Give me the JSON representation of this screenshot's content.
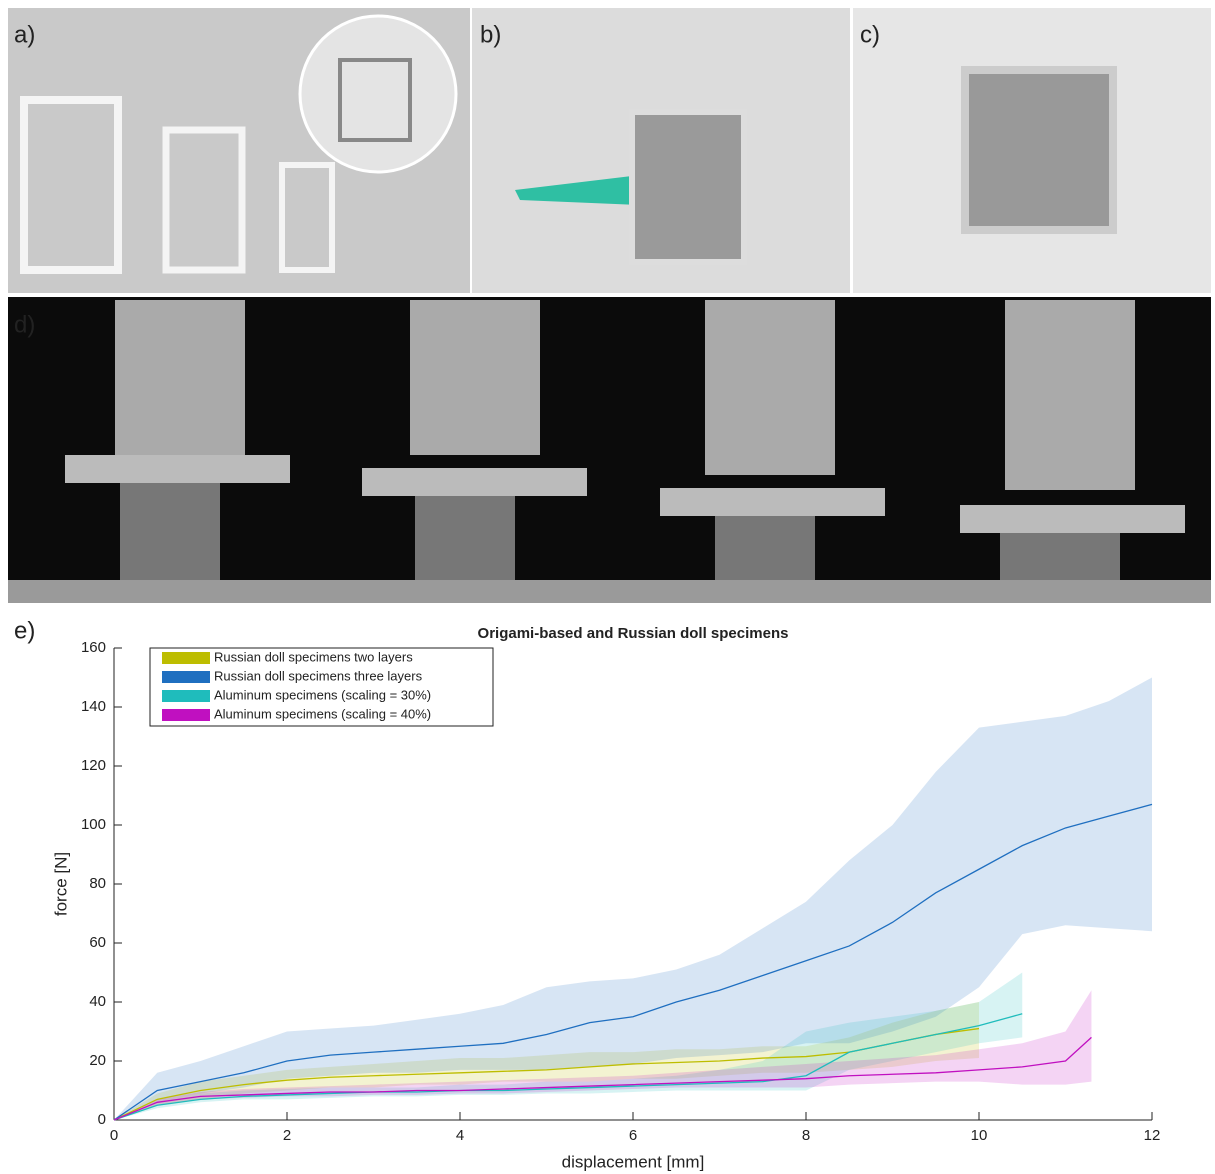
{
  "panels": [
    "a)",
    "b)",
    "c)",
    "d)",
    "e)"
  ],
  "chart_data": {
    "type": "line-band",
    "title": "Origami-based and Russian doll specimens",
    "xlabel": "displacement [mm]",
    "ylabel": "force [N]",
    "xlim": [
      0,
      12
    ],
    "ylim": [
      0,
      160
    ],
    "xticks": [
      0,
      2,
      4,
      6,
      8,
      10,
      12
    ],
    "yticks": [
      0,
      20,
      40,
      60,
      80,
      100,
      120,
      140,
      160
    ],
    "legend": "upper-left",
    "series": [
      {
        "name": "Russian doll specimens two layers",
        "color": "#bdbd00",
        "x": [
          0,
          0.5,
          1,
          1.5,
          2,
          2.5,
          3,
          3.5,
          4,
          4.5,
          5,
          5.5,
          6,
          6.5,
          7,
          7.5,
          8,
          8.5,
          9,
          9.5,
          10
        ],
        "values": [
          0,
          7,
          10,
          12,
          13.5,
          14.5,
          15,
          15.5,
          16,
          16.5,
          17,
          18,
          19,
          19.5,
          20,
          21,
          21.5,
          23,
          26,
          29,
          31
        ],
        "upper": [
          0,
          9,
          13,
          15,
          17,
          18,
          19,
          20,
          21,
          21,
          22,
          23,
          23,
          24,
          24,
          25,
          25,
          28,
          33,
          37,
          40
        ],
        "lower": [
          0,
          5,
          7,
          9,
          10,
          11,
          11,
          12,
          12,
          13,
          13,
          13,
          14,
          14,
          15,
          16,
          16,
          17,
          18,
          20,
          21
        ]
      },
      {
        "name": "Russian doll specimens three layers",
        "color": "#1f6fc0",
        "x": [
          0,
          0.5,
          1,
          1.5,
          2,
          2.5,
          3,
          3.5,
          4,
          4.5,
          5,
          5.5,
          6,
          6.5,
          7,
          7.5,
          8,
          8.5,
          9,
          9.5,
          10,
          10.5,
          11,
          11.5,
          12
        ],
        "values": [
          0,
          10,
          13,
          16,
          20,
          22,
          23,
          24,
          25,
          26,
          29,
          33,
          35,
          40,
          44,
          49,
          54,
          59,
          67,
          77,
          85,
          93,
          99,
          103,
          107
        ],
        "upper": [
          0,
          16,
          20,
          25,
          30,
          31,
          32,
          34,
          36,
          39,
          45,
          47,
          48,
          51,
          56,
          65,
          74,
          88,
          100,
          118,
          133,
          135,
          137,
          142,
          150
        ],
        "lower": [
          0,
          6,
          9,
          11,
          14,
          15,
          16,
          16,
          17,
          17,
          17,
          18,
          19,
          21,
          22,
          23,
          26,
          26,
          30,
          35,
          45,
          63,
          66,
          65,
          64
        ]
      },
      {
        "name": "Aluminum specimens (scaling = 30%)",
        "color": "#1fbcbc",
        "x": [
          0,
          0.5,
          1,
          1.5,
          2,
          2.5,
          3,
          3.5,
          4,
          4.5,
          5,
          5.5,
          6,
          6.5,
          7,
          7.5,
          8,
          8.5,
          9,
          9.5,
          10,
          10.5
        ],
        "values": [
          0,
          5,
          7,
          8,
          8.5,
          9,
          9.5,
          9.5,
          10,
          10,
          10.5,
          11,
          11.5,
          12,
          12.5,
          13,
          15,
          23,
          26,
          29,
          32,
          36
        ],
        "upper": [
          0,
          6,
          9,
          10,
          10.5,
          11,
          11,
          11,
          12,
          12,
          13,
          13,
          14,
          15,
          17,
          20,
          30,
          33,
          35,
          37,
          40,
          50
        ],
        "lower": [
          0,
          4,
          6,
          7,
          7,
          7.5,
          8,
          8,
          8.5,
          8.5,
          9,
          9,
          9.5,
          10,
          10,
          10,
          10,
          17,
          20,
          23,
          26,
          28
        ]
      },
      {
        "name": "Aluminum specimens (scaling = 40%)",
        "color": "#c010c0",
        "x": [
          0,
          0.5,
          1,
          1.5,
          2,
          2.5,
          3,
          3.5,
          4,
          4.5,
          5,
          5.5,
          6,
          6.5,
          7,
          7.5,
          8,
          8.5,
          9,
          9.5,
          10,
          10.5,
          11,
          11.3
        ],
        "values": [
          0,
          6,
          8,
          8.5,
          9,
          9.5,
          9.5,
          10,
          10,
          10.5,
          11,
          11.5,
          12,
          12.5,
          13,
          13.5,
          14,
          15,
          15.5,
          16,
          17,
          18,
          20,
          28
        ],
        "upper": [
          0,
          7,
          9.5,
          10.5,
          11,
          11.5,
          12,
          12.5,
          13,
          13.5,
          14,
          14.5,
          15,
          16,
          17,
          18,
          19,
          20,
          21,
          22,
          24,
          26,
          30,
          44
        ],
        "lower": [
          0,
          5,
          7,
          7.5,
          8,
          8,
          8.5,
          8.5,
          9,
          9,
          9.5,
          10,
          10.5,
          11,
          11,
          11,
          11,
          12,
          12.5,
          13,
          13,
          12,
          12,
          13
        ]
      }
    ]
  }
}
